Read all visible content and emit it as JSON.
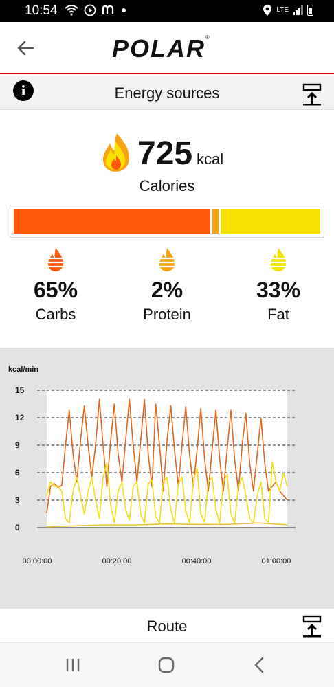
{
  "status_bar": {
    "time": "10:54",
    "network": "LTE",
    "icons": [
      "wifi-calling-icon",
      "media-icon",
      "app-notification-icon",
      "dot-icon",
      "location-icon",
      "lte-icon",
      "signal-icon",
      "battery-icon"
    ]
  },
  "app_bar": {
    "logo_text": "POLAR",
    "logo_mark": "®"
  },
  "section": {
    "title": "Energy sources"
  },
  "calories": {
    "value": "725",
    "unit": "kcal",
    "label": "Calories"
  },
  "colors": {
    "carbs": "#ff5a0a",
    "protein": "#f7a414",
    "fat": "#f7e100",
    "brand_red": "#d10019",
    "chart_carbs_line": "#e0661f",
    "chart_fat_line": "#f3de18",
    "chart_protein_line": "#e8c23a"
  },
  "energy_breakdown": {
    "carbs": {
      "percent": "65%",
      "label": "Carbs",
      "value": 65
    },
    "protein": {
      "percent": "2%",
      "label": "Protein",
      "value": 2
    },
    "fat": {
      "percent": "33%",
      "label": "Fat",
      "value": 33
    }
  },
  "chart_data": {
    "type": "line",
    "ylabel": "kcal/min",
    "xlabel": "",
    "ylim": [
      0,
      15
    ],
    "yticks": [
      "15",
      "12",
      "9",
      "6",
      "3",
      "0"
    ],
    "xticks": [
      "00:00:00",
      "00:20:00",
      "00:40:00",
      "01:00:00"
    ],
    "x_range_minutes": [
      0,
      64
    ],
    "grid": "dashed horizontal",
    "series": [
      {
        "color_key": "chart_carbs_line",
        "x": [
          0,
          1,
          2,
          3,
          4,
          5,
          6,
          7,
          8,
          9,
          10,
          11,
          12,
          13,
          14,
          15,
          16,
          17,
          18,
          19,
          20,
          21,
          22,
          23,
          24,
          25,
          26,
          27,
          28,
          29,
          30,
          31,
          32,
          33,
          34,
          35,
          36,
          37,
          38,
          39,
          40,
          41,
          42,
          43,
          44,
          45,
          46,
          47,
          48,
          49,
          50,
          51,
          52,
          53,
          54,
          55,
          56,
          57,
          58,
          59,
          60,
          61,
          62,
          63,
          64
        ],
        "y": [
          1.6,
          4.5,
          4.8,
          4.4,
          4.6,
          9.0,
          12.8,
          8.0,
          5.0,
          9.5,
          13.3,
          9.0,
          5.5,
          9.0,
          14.0,
          9.0,
          4.5,
          9.5,
          13.5,
          8.0,
          5.0,
          9.5,
          14.0,
          9.0,
          5.0,
          9.5,
          14.0,
          8.0,
          4.5,
          13.5,
          9.0,
          4.0,
          9.5,
          13.3,
          8.5,
          4.5,
          9.0,
          13.2,
          8.0,
          4.5,
          8.5,
          13.0,
          7.5,
          4.0,
          8.5,
          12.8,
          7.5,
          4.0,
          8.5,
          12.8,
          7.5,
          4.0,
          9.0,
          12.5,
          7.0,
          4.0,
          8.0,
          12.0,
          7.0,
          4.0,
          4.5,
          5.0,
          4.0,
          3.5,
          3.0
        ]
      },
      {
        "color_key": "chart_fat_line",
        "x": [
          0,
          1,
          2,
          3,
          4,
          5,
          6,
          7,
          8,
          9,
          10,
          11,
          12,
          13,
          14,
          15,
          16,
          17,
          18,
          19,
          20,
          21,
          22,
          23,
          24,
          25,
          26,
          27,
          28,
          29,
          30,
          31,
          32,
          33,
          34,
          35,
          36,
          37,
          38,
          39,
          40,
          41,
          42,
          43,
          44,
          45,
          46,
          47,
          48,
          49,
          50,
          51,
          52,
          53,
          54,
          55,
          56,
          57,
          58,
          59,
          60,
          61,
          62,
          63,
          64
        ],
        "y": [
          3.5,
          5.0,
          4.5,
          4.5,
          4.0,
          1.0,
          0.5,
          4.0,
          5.5,
          3.5,
          1.5,
          4.0,
          5.5,
          3.0,
          1.0,
          5.5,
          7.0,
          2.5,
          0.5,
          4.0,
          5.0,
          2.0,
          0.8,
          4.5,
          5.0,
          1.5,
          0.5,
          4.8,
          5.2,
          1.2,
          0.5,
          5.0,
          5.5,
          2.0,
          0.5,
          4.8,
          5.5,
          1.8,
          0.5,
          5.0,
          6.5,
          1.5,
          0.6,
          5.0,
          5.5,
          2.0,
          0.5,
          5.0,
          5.8,
          1.5,
          0.5,
          4.5,
          5.5,
          3.5,
          1.0,
          0.5,
          3.5,
          5.0,
          1.0,
          0.5,
          7.2,
          5.0,
          4.0,
          6.0,
          4.5
        ]
      },
      {
        "color_key": "chart_protein_line",
        "x": [
          0,
          8,
          16,
          24,
          32,
          40,
          48,
          56,
          64
        ],
        "y": [
          0.1,
          0.2,
          0.3,
          0.3,
          0.4,
          0.35,
          0.35,
          0.5,
          0.3
        ]
      }
    ]
  },
  "route": {
    "title": "Route"
  }
}
